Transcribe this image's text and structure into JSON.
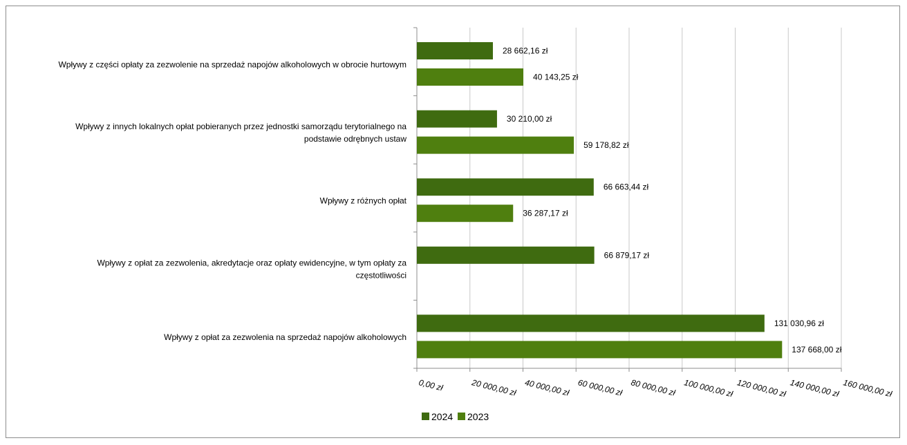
{
  "chart_data": {
    "type": "bar",
    "orientation": "horizontal",
    "categories": [
      "Wpływy z części opłaty za zezwolenie na sprzedaż napojów alkoholowych w obrocie hurtowym",
      "Wpływy z innych lokalnych opłat pobieranych przez jednostki samorządu terytorialnego na podstawie odrębnych ustaw",
      "Wpływy z różnych opłat",
      "Wpływy z opłat za zezwolenia, akredytacje oraz opłaty ewidencyjne, w tym opłaty za częstotliwości",
      "Wpływy z opłat za zezwolenia na sprzedaż napojów alkoholowych"
    ],
    "category_lines": [
      [
        "Wpływy z części opłaty za zezwolenie na sprzedaż napojów alkoholowych w obrocie hurtowym"
      ],
      [
        "Wpływy z innych lokalnych opłat pobieranych przez jednostki samorządu terytorialnego na",
        "podstawie odrębnych ustaw"
      ],
      [
        "Wpływy z różnych opłat"
      ],
      [
        "Wpływy z opłat za zezwolenia, akredytacje oraz opłaty ewidencyjne, w tym opłaty za",
        "częstotliwości"
      ],
      [
        "Wpływy z opłat za zezwolenia na sprzedaż napojów alkoholowych"
      ]
    ],
    "series": [
      {
        "name": "2024",
        "color": "#3f6b10",
        "values": [
          28662.16,
          30210.0,
          66663.44,
          66879.17,
          131030.96
        ],
        "labels": [
          "28 662,16 zł",
          "30 210,00 zł",
          "66 663,44 zł",
          "66 879,17 zł",
          "131 030,96 zł"
        ]
      },
      {
        "name": "2023",
        "color": "#4f7f0f",
        "values": [
          40143.25,
          59178.82,
          36287.17,
          null,
          137668.0
        ],
        "labels": [
          "40 143,25 zł",
          "59 178,82 zł",
          "36 287,17 zł",
          "",
          "137 668,00 zł"
        ]
      }
    ],
    "xlim": [
      0,
      160000
    ],
    "x_ticks": [
      0,
      20000,
      40000,
      60000,
      80000,
      100000,
      120000,
      140000,
      160000
    ],
    "x_tick_labels": [
      "0,00 zł",
      "20 000,00 zł",
      "40 000,00 zł",
      "60 000,00 zł",
      "80 000,00 zł",
      "100 000,00 zł",
      "120 000,00 zł",
      "140 000,00 zł",
      "160 000,00 zł"
    ],
    "grid": "vertical",
    "gridline_color": "#c8c8c8",
    "legend": "bottom",
    "title": "",
    "xlabel": "",
    "ylabel": ""
  }
}
